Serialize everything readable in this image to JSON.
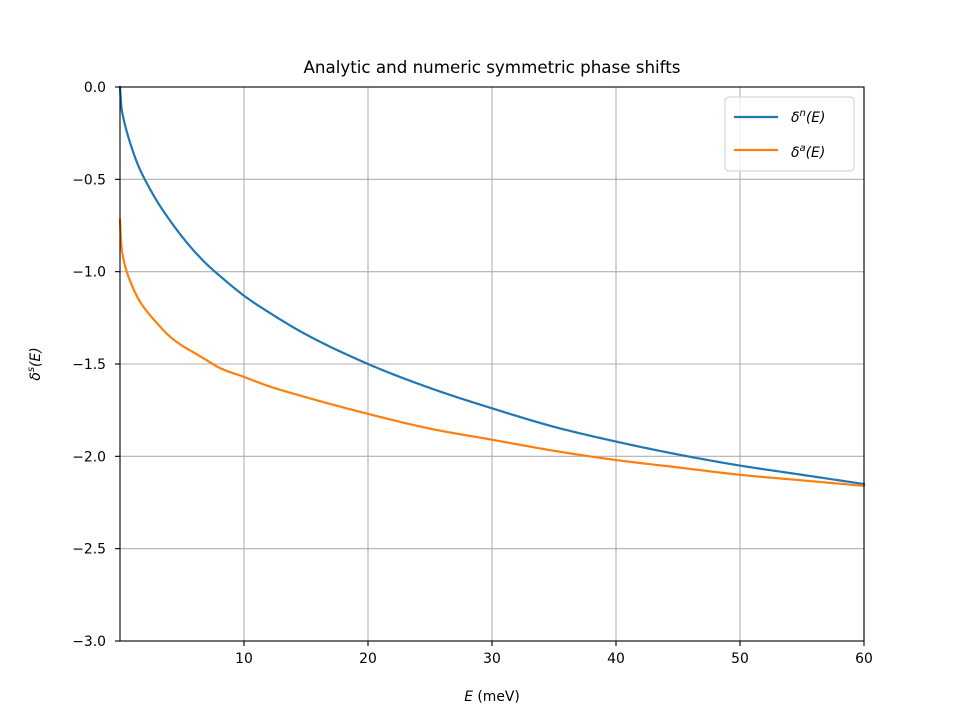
{
  "chart_data": {
    "type": "line",
    "title": "Analytic and numeric symmetric phase shifts",
    "xlabel_var": "E",
    "xlabel_unit": " (meV)",
    "ylabel_base": "δ",
    "ylabel_sup": "s",
    "ylabel_arg": "(E)",
    "xlim": [
      0,
      60
    ],
    "ylim": [
      -3.0,
      0.0
    ],
    "xticks": [
      10,
      20,
      30,
      40,
      50,
      60
    ],
    "xtick_labels": [
      "10",
      "20",
      "30",
      "40",
      "50",
      "60"
    ],
    "yticks": [
      0.0,
      -0.5,
      -1.0,
      -1.5,
      -2.0,
      -2.5,
      -3.0
    ],
    "ytick_labels": [
      "0.0",
      "−0.5",
      "−1.0",
      "−1.5",
      "−2.0",
      "−2.5",
      "−3.0"
    ],
    "grid": true,
    "legend_position": "top-right",
    "series": [
      {
        "base": "δ",
        "sup": "n",
        "arg": "(E)",
        "color": "#1f77b4",
        "x": [
          0.0,
          0.1,
          0.25,
          0.5,
          1.0,
          1.5,
          2.0,
          3.0,
          4.0,
          5.0,
          6.0,
          7.0,
          8.0,
          10.0,
          12.0,
          15.0,
          20.0,
          25.0,
          30.0,
          35.0,
          40.0,
          45.0,
          50.0,
          55.0,
          60.0
        ],
        "y": [
          0.0,
          -0.1,
          -0.16,
          -0.23,
          -0.34,
          -0.43,
          -0.5,
          -0.62,
          -0.72,
          -0.81,
          -0.89,
          -0.96,
          -1.02,
          -1.13,
          -1.22,
          -1.34,
          -1.5,
          -1.63,
          -1.74,
          -1.84,
          -1.92,
          -1.99,
          -2.05,
          -2.1,
          -2.15
        ]
      },
      {
        "base": "δ",
        "sup": "a",
        "arg": "(E)",
        "color": "#ff7f0e",
        "x": [
          0.0,
          0.1,
          0.25,
          0.5,
          1.0,
          1.5,
          2.0,
          3.0,
          4.0,
          5.0,
          6.0,
          7.0,
          8.0,
          10.0,
          12.0,
          15.0,
          20.0,
          25.0,
          30.0,
          35.0,
          40.0,
          45.0,
          50.0,
          55.0,
          60.0
        ],
        "y": [
          -0.72,
          -0.85,
          -0.92,
          -0.99,
          -1.08,
          -1.15,
          -1.2,
          -1.28,
          -1.35,
          -1.4,
          -1.44,
          -1.48,
          -1.52,
          -1.57,
          -1.62,
          -1.68,
          -1.77,
          -1.85,
          -1.91,
          -1.97,
          -2.02,
          -2.06,
          -2.1,
          -2.13,
          -2.16
        ]
      }
    ]
  }
}
